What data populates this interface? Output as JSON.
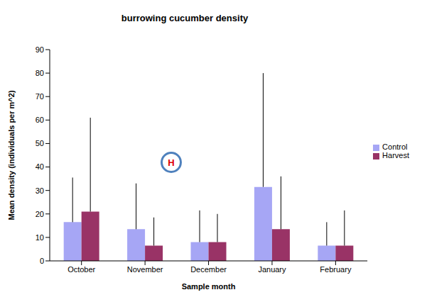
{
  "chart_data": {
    "type": "bar",
    "title": "burrowing cucumber density",
    "x_label": "Sample month",
    "y_label": "Mean density (individuals per m^2)",
    "categories": [
      "October",
      "November",
      "December",
      "January",
      "February"
    ],
    "series": [
      {
        "name": "Control",
        "color": "#a6a6f5",
        "values": [
          16.5,
          13.5,
          8,
          31.5,
          6.5
        ],
        "errors": [
          19,
          19.5,
          13.5,
          48.5,
          10
        ]
      },
      {
        "name": "Harvest",
        "color": "#993366",
        "values": [
          21,
          6.5,
          8,
          13.5,
          6.5
        ],
        "errors": [
          40,
          12,
          12,
          22.5,
          15
        ]
      }
    ],
    "ylim": [
      0,
      90
    ],
    "yticks": [
      0,
      10,
      20,
      30,
      40,
      50,
      60,
      70,
      80,
      90
    ],
    "grid": false,
    "legend": "right",
    "annotation": "H"
  }
}
